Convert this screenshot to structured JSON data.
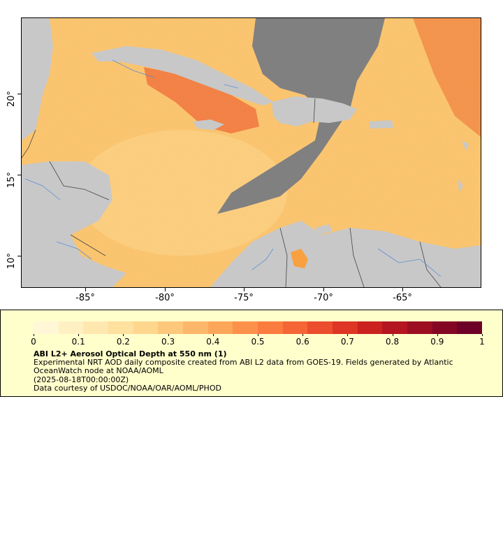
{
  "map": {
    "lat_ticks": [
      "10°",
      "15°",
      "20°"
    ],
    "lon_ticks": [
      "-85°",
      "-80°",
      "-75°",
      "-70°",
      "-65°"
    ],
    "colors": {
      "no_data": "#808080",
      "land": "#c8c8c8",
      "rivers": "#5a8fd6",
      "borders": "#444444",
      "aod_low": "#fff7c0",
      "aod_mid": "#f7a84a",
      "aod_high": "#e0442a"
    }
  },
  "legend": {
    "scale_labels": [
      "0",
      "0.1",
      "0.2",
      "0.3",
      "0.4",
      "0.5",
      "0.6",
      "0.7",
      "0.8",
      "0.9",
      "1"
    ],
    "colorbar_colors": [
      "#fff7d6",
      "#fff0c2",
      "#ffe8b0",
      "#fee09f",
      "#fed68e",
      "#fdc77c",
      "#fdb76a",
      "#fca65a",
      "#fc914c",
      "#fb7c3f",
      "#f56535",
      "#ec4d2c",
      "#de3524",
      "#cb2220",
      "#b51520",
      "#9c0d22",
      "#830624",
      "#6d0026"
    ],
    "title": "ABI L2+ Aerosol Optical Depth at 550 nm (1)",
    "description": "Experimental NRT AOD daily composite created from ABI L2 data from GOES-19. Fields generated by Atlantic OceanWatch node at NOAA/AOML",
    "time": "(2025-08-18T00:00:00Z)",
    "credit": "Data courtesy of USDOC/NOAA/OAR/AOML/PHOD"
  }
}
